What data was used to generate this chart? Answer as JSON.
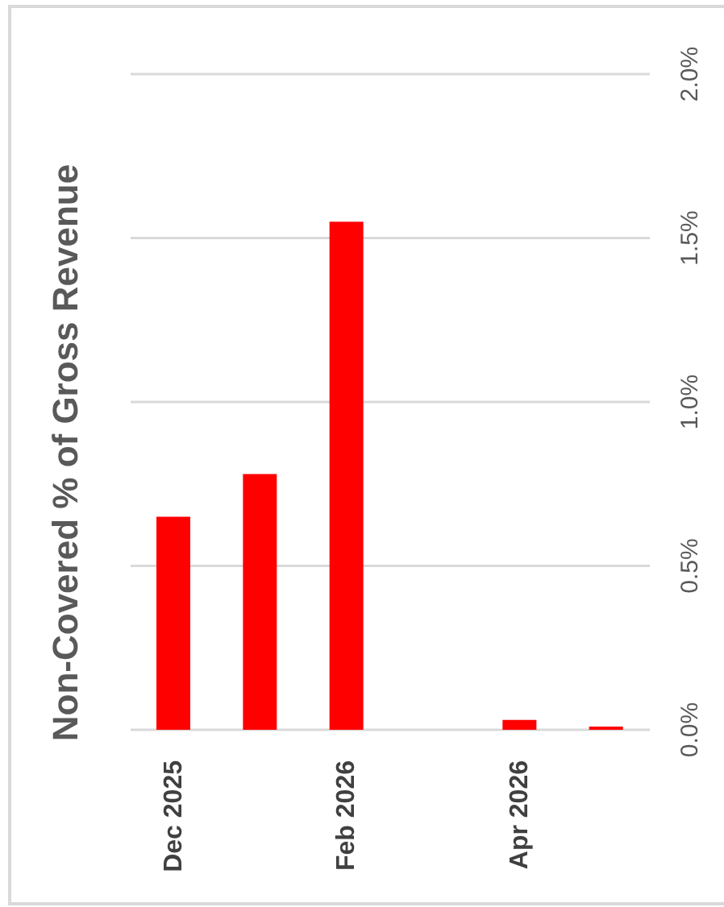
{
  "chart_data": {
    "type": "bar",
    "ylabel": "Non-Covered % of Gross Revenue",
    "categories": [
      "Dec 2025",
      null,
      "Feb 2026",
      null,
      "Apr 2026",
      null
    ],
    "values": [
      0.65,
      0.78,
      1.55,
      null,
      0.03,
      0.01
    ],
    "color": "#ff0000",
    "ylim": [
      0,
      2
    ],
    "yticks": [
      {
        "value": 0,
        "label": "0.0%"
      },
      {
        "value": 0.5,
        "label": "0.5%"
      },
      {
        "value": 1,
        "label": "1.0%"
      },
      {
        "value": 1.5,
        "label": "1.5%"
      },
      {
        "value": 2,
        "label": "2.0%"
      }
    ],
    "grid": "y"
  }
}
